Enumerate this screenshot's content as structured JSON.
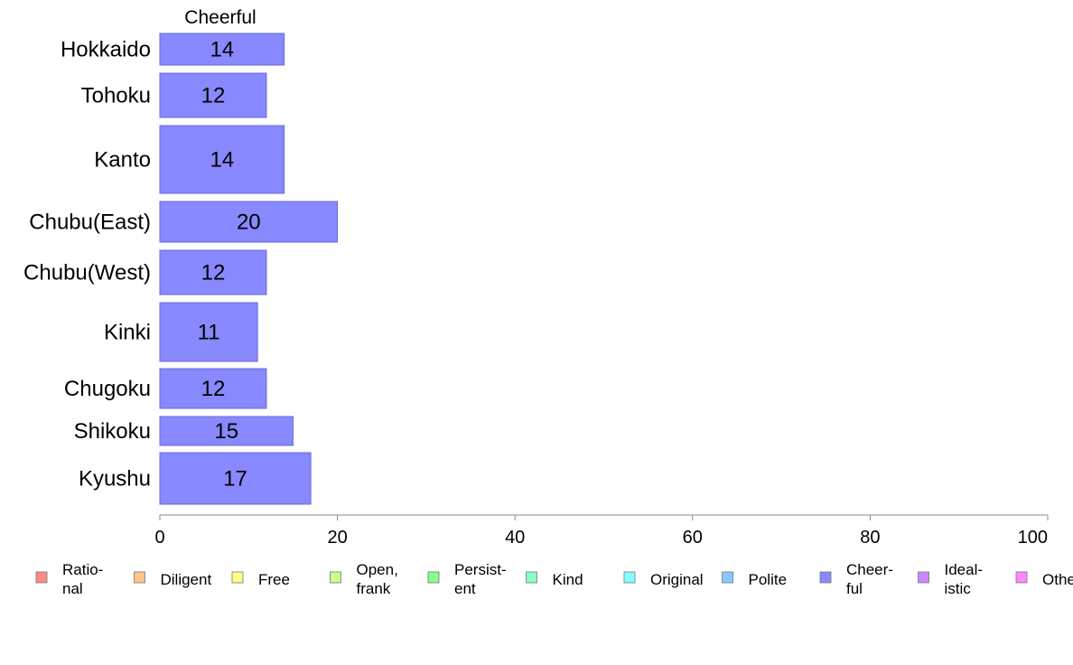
{
  "chart_data": {
    "type": "bar",
    "orientation": "horizontal",
    "title": "Cheerful",
    "categories": [
      "Hokkaido",
      "Tohoku",
      "Kanto",
      "Chubu(East)",
      "Chubu(West)",
      "Kinki",
      "Chugoku",
      "Shikoku",
      "Kyushu"
    ],
    "series": [
      {
        "name": "Cheerful",
        "values": [
          14,
          12,
          14,
          20,
          12,
          11,
          12,
          15,
          17
        ],
        "color": "#8888ff"
      }
    ],
    "xlim": [
      0,
      100
    ],
    "x_ticks": [
      0,
      20,
      40,
      60,
      80,
      100
    ],
    "grid": false,
    "legend_position": "bottom",
    "legend": [
      {
        "lines": [
          "Ratio-",
          "nal"
        ],
        "color": "#ff8888"
      },
      {
        "lines": [
          "Diligent"
        ],
        "color": "#ffc888"
      },
      {
        "lines": [
          "Free"
        ],
        "color": "#ffff88"
      },
      {
        "lines": [
          "Open,",
          "frank"
        ],
        "color": "#c8ff88"
      },
      {
        "lines": [
          "Persist-",
          "ent"
        ],
        "color": "#88ff88"
      },
      {
        "lines": [
          "Kind"
        ],
        "color": "#88ffc8"
      },
      {
        "lines": [
          "Original"
        ],
        "color": "#88ffff"
      },
      {
        "lines": [
          "Polite"
        ],
        "color": "#88c8ff"
      },
      {
        "lines": [
          "Cheer-",
          "ful"
        ],
        "color": "#8888ff"
      },
      {
        "lines": [
          "Ideal-",
          "istic"
        ],
        "color": "#c888ff"
      },
      {
        "lines": [
          "Other"
        ],
        "color": "#ff88ff"
      }
    ]
  }
}
